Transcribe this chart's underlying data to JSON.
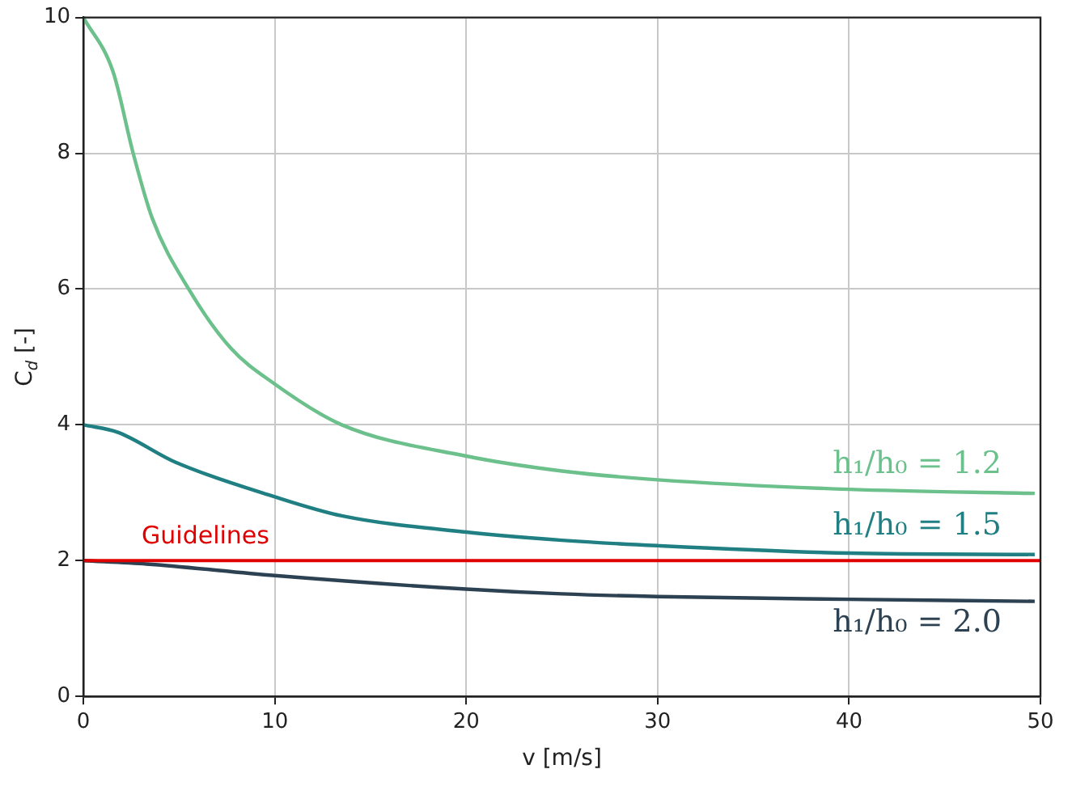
{
  "chart_data": {
    "type": "line",
    "xlabel": "v [m/s]",
    "ylabel": "C$_{d}$ [-]",
    "xlim": [
      0,
      50
    ],
    "xticks": [
      0,
      10,
      20,
      30,
      40,
      50
    ],
    "ylim": [
      0,
      10
    ],
    "yticks": [
      0,
      2,
      4,
      6,
      8,
      10
    ],
    "grid": true,
    "legend": false,
    "marker": "none",
    "line_style": "solid",
    "series": [
      {
        "name": "h₁/h₀ = 1.2",
        "color": "#6cc08b",
        "x": [
          0,
          1.55,
          2.6,
          3.6,
          5.5,
          7.7,
          10,
          13.5,
          20,
          25,
          30,
          40,
          49.7
        ],
        "values": [
          10,
          9.2,
          8,
          7.04,
          6,
          5.13,
          4.6,
          4.0,
          3.54,
          3.32,
          3.19,
          3.05,
          2.99
        ]
      },
      {
        "name": "h₁/h₀ = 1.5",
        "color": "#1f7f82",
        "x": [
          0,
          1.8,
          4.8,
          10,
          13.5,
          20,
          25,
          30,
          40,
          49.7
        ],
        "values": [
          4.0,
          3.89,
          3.45,
          2.94,
          2.66,
          2.42,
          2.3,
          2.22,
          2.11,
          2.09
        ]
      },
      {
        "name": "h₁/h₀ = 2.0",
        "color": "#2c4152",
        "x": [
          0,
          3.3,
          10,
          20,
          25,
          30,
          40,
          49.7
        ],
        "values": [
          2.0,
          1.95,
          1.78,
          1.58,
          1.51,
          1.47,
          1.43,
          1.4
        ]
      }
    ],
    "ref_lines": [
      {
        "axis": "y",
        "value": 2,
        "label": "Guidelines",
        "color": "#e00000",
        "line_style": "solid"
      }
    ]
  }
}
